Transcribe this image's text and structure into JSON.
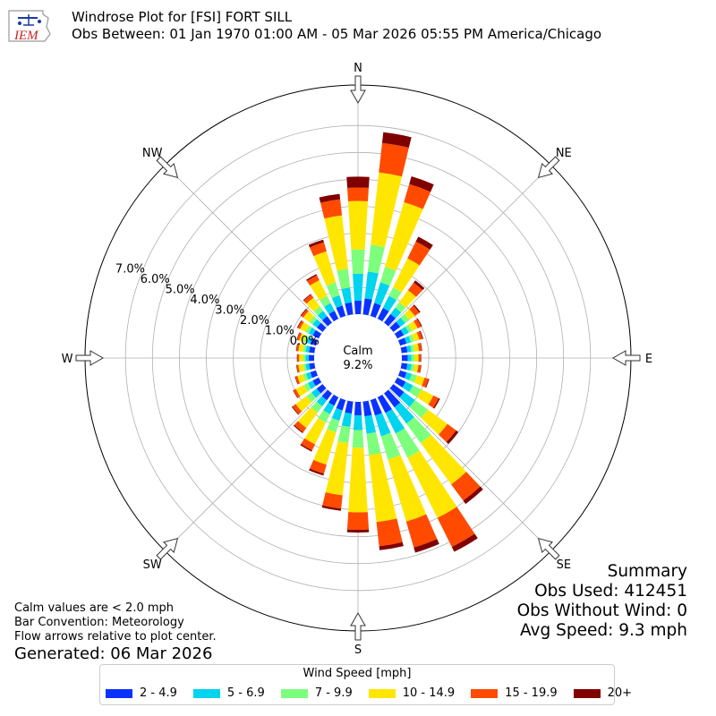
{
  "header": {
    "title_line1": "Windrose Plot for [FSI] FORT SILL",
    "title_line2": "Obs Between: 01 Jan 1970 01:00 AM - 05 Mar 2026 05:55 PM America/Chicago",
    "logo_text": "IEM"
  },
  "summary": {
    "heading": "Summary",
    "obs_used": "Obs Used: 412451",
    "obs_without_wind": "Obs Without Wind: 0",
    "avg_speed": "Avg Speed: 9.3 mph"
  },
  "notes": {
    "calm_note": "Calm values are < 2.0 mph",
    "bar_convention": "Bar Convention: Meteorology",
    "flow_arrows": "Flow arrows relative to plot center.",
    "generated": "Generated: 06 Mar 2026"
  },
  "chart_data": {
    "type": "windrose",
    "calm_label": "Calm",
    "calm_value": "9.2%",
    "radial_tick_labels": [
      "0.0%",
      "1.0%",
      "2.0%",
      "3.0%",
      "4.0%",
      "5.0%",
      "6.0%",
      "7.0%"
    ],
    "radial_ticks": [
      0,
      1,
      2,
      3,
      4,
      5,
      6,
      7
    ],
    "rmax": 8.5,
    "compass_labels": [
      {
        "label": "N",
        "deg": 0
      },
      {
        "label": "NE",
        "deg": 45
      },
      {
        "label": "E",
        "deg": 90
      },
      {
        "label": "SE",
        "deg": 135
      },
      {
        "label": "S",
        "deg": 180
      },
      {
        "label": "SW",
        "deg": 225
      },
      {
        "label": "W",
        "deg": 270
      },
      {
        "label": "NW",
        "deg": 315
      }
    ],
    "legend_title": "Wind Speed [mph]",
    "bins": [
      {
        "label": "2 - 4.9",
        "color": "#0a32ff"
      },
      {
        "label": "5 - 6.9",
        "color": "#00d4ef"
      },
      {
        "label": "7 - 9.9",
        "color": "#7dff7d"
      },
      {
        "label": "10 - 14.9",
        "color": "#ffe600"
      },
      {
        "label": "15 - 19.9",
        "color": "#ff4a00"
      },
      {
        "label": "20+",
        "color": "#800000"
      }
    ],
    "directions_deg": [
      0,
      10,
      20,
      30,
      40,
      50,
      60,
      70,
      80,
      90,
      100,
      110,
      120,
      130,
      140,
      150,
      160,
      170,
      180,
      190,
      200,
      210,
      220,
      230,
      240,
      250,
      260,
      270,
      280,
      290,
      300,
      310,
      320,
      330,
      340,
      350
    ],
    "cumulative_percent": [
      [
        0.5,
        1.5,
        2.4,
        4.2,
        4.7,
        5.1
      ],
      [
        0.6,
        1.6,
        2.6,
        5.3,
        6.4,
        6.8
      ],
      [
        0.5,
        1.3,
        1.9,
        4.4,
        5.1,
        5.4
      ],
      [
        0.45,
        0.95,
        1.3,
        2.5,
        3.2,
        3.4
      ],
      [
        0.4,
        0.7,
        0.95,
        1.5,
        1.85,
        1.95
      ],
      [
        0.32,
        0.55,
        0.75,
        1.0,
        1.2,
        1.25
      ],
      [
        0.27,
        0.48,
        0.62,
        0.85,
        1.0,
        1.03
      ],
      [
        0.25,
        0.42,
        0.55,
        0.75,
        0.87,
        0.9
      ],
      [
        0.22,
        0.37,
        0.48,
        0.65,
        0.75,
        0.77
      ],
      [
        0.22,
        0.36,
        0.47,
        0.62,
        0.7,
        0.72
      ],
      [
        0.22,
        0.37,
        0.48,
        0.63,
        0.72,
        0.74
      ],
      [
        0.25,
        0.45,
        0.65,
        0.95,
        1.1,
        1.13
      ],
      [
        0.35,
        0.65,
        1.0,
        1.5,
        1.72,
        1.77
      ],
      [
        0.5,
        1.0,
        1.6,
        2.5,
        2.9,
        3.0
      ],
      [
        0.65,
        1.4,
        2.3,
        4.2,
        4.95,
        5.1
      ],
      [
        0.65,
        1.5,
        2.5,
        5.0,
        6.2,
        6.4
      ],
      [
        0.6,
        1.4,
        2.3,
        4.7,
        5.7,
        5.9
      ],
      [
        0.55,
        1.2,
        2.0,
        4.5,
        5.4,
        5.55
      ],
      [
        0.5,
        1.05,
        1.7,
        4.1,
        4.75,
        4.85
      ],
      [
        0.45,
        0.95,
        1.55,
        3.5,
        4.0,
        4.08
      ],
      [
        0.4,
        0.8,
        1.25,
        2.5,
        2.85,
        2.92
      ],
      [
        0.35,
        0.7,
        1.05,
        1.95,
        2.2,
        2.25
      ],
      [
        0.32,
        0.6,
        0.9,
        1.6,
        1.8,
        1.84
      ],
      [
        0.28,
        0.52,
        0.75,
        1.25,
        1.4,
        1.43
      ],
      [
        0.25,
        0.45,
        0.62,
        0.95,
        1.05,
        1.07
      ],
      [
        0.22,
        0.38,
        0.5,
        0.72,
        0.8,
        0.82
      ],
      [
        0.2,
        0.33,
        0.42,
        0.6,
        0.66,
        0.68
      ],
      [
        0.2,
        0.32,
        0.4,
        0.56,
        0.62,
        0.64
      ],
      [
        0.2,
        0.33,
        0.43,
        0.6,
        0.67,
        0.69
      ],
      [
        0.22,
        0.36,
        0.47,
        0.65,
        0.73,
        0.75
      ],
      [
        0.25,
        0.42,
        0.55,
        0.78,
        0.87,
        0.9
      ],
      [
        0.27,
        0.47,
        0.62,
        0.9,
        1.0,
        1.03
      ],
      [
        0.3,
        0.55,
        0.75,
        1.15,
        1.3,
        1.33
      ],
      [
        0.33,
        0.65,
        0.95,
        1.6,
        1.8,
        1.85
      ],
      [
        0.4,
        0.8,
        1.3,
        2.5,
        2.85,
        2.95
      ],
      [
        0.45,
        1.0,
        1.7,
        3.7,
        4.3,
        4.5
      ]
    ]
  }
}
